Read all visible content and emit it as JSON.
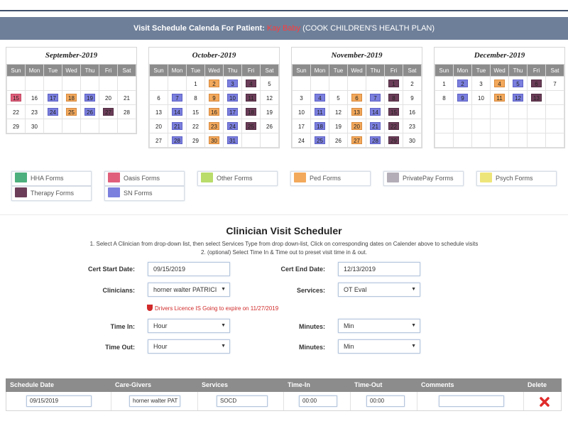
{
  "header": {
    "title_prefix": "Visit Schedule Calenda For Patient:",
    "patient_name": "Kay Baby",
    "plan": "(COOK CHILDREN'S HEALTH PLAN)"
  },
  "calendar": {
    "weekdays": [
      "Sun",
      "Mon",
      "Tue",
      "Wed",
      "Thu",
      "Fri",
      "Sat"
    ],
    "months": [
      {
        "title": "September-2019",
        "weeks": [
          [
            {
              "d": ""
            },
            {
              "d": ""
            },
            {
              "d": ""
            },
            {
              "d": ""
            },
            {
              "d": ""
            },
            {
              "d": ""
            },
            {
              "d": ""
            }
          ],
          [
            {
              "d": "15",
              "c": "oasis"
            },
            {
              "d": "16"
            },
            {
              "d": "17",
              "c": "sn"
            },
            {
              "d": "18",
              "c": "ped"
            },
            {
              "d": "19",
              "c": "sn"
            },
            {
              "d": "20"
            },
            {
              "d": "21"
            }
          ],
          [
            {
              "d": "22"
            },
            {
              "d": "23"
            },
            {
              "d": "24",
              "c": "sn"
            },
            {
              "d": "25",
              "c": "ped"
            },
            {
              "d": "26",
              "c": "sn"
            },
            {
              "d": "27",
              "c": "therapy"
            },
            {
              "d": "28"
            }
          ],
          [
            {
              "d": "29"
            },
            {
              "d": "30"
            },
            {
              "d": ""
            },
            {
              "d": ""
            },
            {
              "d": ""
            },
            {
              "d": ""
            },
            {
              "d": ""
            }
          ]
        ]
      },
      {
        "title": "October-2019",
        "weeks": [
          [
            {
              "d": ""
            },
            {
              "d": ""
            },
            {
              "d": "1"
            },
            {
              "d": "2",
              "c": "ped"
            },
            {
              "d": "3",
              "c": "sn"
            },
            {
              "d": "4",
              "c": "therapy"
            },
            {
              "d": "5"
            }
          ],
          [
            {
              "d": "6"
            },
            {
              "d": "7",
              "c": "sn"
            },
            {
              "d": "8"
            },
            {
              "d": "9",
              "c": "ped"
            },
            {
              "d": "10",
              "c": "sn"
            },
            {
              "d": "11",
              "c": "therapy"
            },
            {
              "d": "12"
            }
          ],
          [
            {
              "d": "13"
            },
            {
              "d": "14",
              "c": "sn"
            },
            {
              "d": "15"
            },
            {
              "d": "16",
              "c": "ped"
            },
            {
              "d": "17",
              "c": "sn"
            },
            {
              "d": "18",
              "c": "therapy"
            },
            {
              "d": "19"
            }
          ],
          [
            {
              "d": "20"
            },
            {
              "d": "21",
              "c": "sn"
            },
            {
              "d": "22"
            },
            {
              "d": "23",
              "c": "ped"
            },
            {
              "d": "24",
              "c": "sn"
            },
            {
              "d": "25",
              "c": "therapy"
            },
            {
              "d": "26"
            }
          ],
          [
            {
              "d": "27"
            },
            {
              "d": "28",
              "c": "sn"
            },
            {
              "d": "29"
            },
            {
              "d": "30",
              "c": "ped"
            },
            {
              "d": "31",
              "c": "sn"
            },
            {
              "d": ""
            },
            {
              "d": ""
            }
          ]
        ]
      },
      {
        "title": "November-2019",
        "weeks": [
          [
            {
              "d": ""
            },
            {
              "d": ""
            },
            {
              "d": ""
            },
            {
              "d": ""
            },
            {
              "d": ""
            },
            {
              "d": "1",
              "c": "therapy"
            },
            {
              "d": "2"
            }
          ],
          [
            {
              "d": "3"
            },
            {
              "d": "4",
              "c": "sn"
            },
            {
              "d": "5"
            },
            {
              "d": "6",
              "c": "ped"
            },
            {
              "d": "7",
              "c": "sn"
            },
            {
              "d": "8",
              "c": "therapy"
            },
            {
              "d": "9"
            }
          ],
          [
            {
              "d": "10"
            },
            {
              "d": "11",
              "c": "sn"
            },
            {
              "d": "12"
            },
            {
              "d": "13",
              "c": "ped"
            },
            {
              "d": "14",
              "c": "sn"
            },
            {
              "d": "15",
              "c": "therapy"
            },
            {
              "d": "16"
            }
          ],
          [
            {
              "d": "17"
            },
            {
              "d": "18",
              "c": "sn"
            },
            {
              "d": "19"
            },
            {
              "d": "20",
              "c": "ped"
            },
            {
              "d": "21",
              "c": "sn"
            },
            {
              "d": "22",
              "c": "therapy"
            },
            {
              "d": "23"
            }
          ],
          [
            {
              "d": "24"
            },
            {
              "d": "25",
              "c": "sn"
            },
            {
              "d": "26"
            },
            {
              "d": "27",
              "c": "ped"
            },
            {
              "d": "28",
              "c": "sn"
            },
            {
              "d": "29",
              "c": "therapy"
            },
            {
              "d": "30"
            }
          ]
        ]
      },
      {
        "title": "December-2019",
        "weeks": [
          [
            {
              "d": "1"
            },
            {
              "d": "2",
              "c": "sn"
            },
            {
              "d": "3"
            },
            {
              "d": "4",
              "c": "ped"
            },
            {
              "d": "5",
              "c": "sn"
            },
            {
              "d": "6",
              "c": "therapy"
            },
            {
              "d": "7"
            }
          ],
          [
            {
              "d": "8"
            },
            {
              "d": "9",
              "c": "sn"
            },
            {
              "d": "10"
            },
            {
              "d": "11",
              "c": "ped"
            },
            {
              "d": "12",
              "c": "sn"
            },
            {
              "d": "13",
              "c": "therapy"
            },
            {
              "d": ""
            }
          ],
          [
            {
              "d": ""
            },
            {
              "d": ""
            },
            {
              "d": ""
            },
            {
              "d": ""
            },
            {
              "d": ""
            },
            {
              "d": ""
            },
            {
              "d": ""
            }
          ],
          [
            {
              "d": ""
            },
            {
              "d": ""
            },
            {
              "d": ""
            },
            {
              "d": ""
            },
            {
              "d": ""
            },
            {
              "d": ""
            },
            {
              "d": ""
            }
          ],
          [
            {
              "d": ""
            },
            {
              "d": ""
            },
            {
              "d": ""
            },
            {
              "d": ""
            },
            {
              "d": ""
            },
            {
              "d": ""
            },
            {
              "d": ""
            }
          ]
        ]
      }
    ]
  },
  "legend": [
    {
      "label": "HHA Forms",
      "color": "#4caf7d"
    },
    {
      "label": "Oasis Forms",
      "color": "#e0607c"
    },
    {
      "label": "Other Forms",
      "color": "#b9dc6b"
    },
    {
      "label": "Ped Forms",
      "color": "#f3a95c"
    },
    {
      "label": "PrivatePay Forms",
      "color": "#b3adb8"
    },
    {
      "label": "Psych Forms",
      "color": "#eee57a"
    },
    {
      "label": "Therapy Forms",
      "color": "#6b3d58"
    },
    {
      "label": "SN Forms",
      "color": "#7b7fde"
    }
  ],
  "scheduler": {
    "title": "Clinician Visit Scheduler",
    "instruction1": "1. Select A Clinician from drop-down list, then select Services Type from drop down-list, Click on corresponding dates on Calender above to schedule visits",
    "instruction2": "2. (optional) Select Time In & Time out to preset visit time in & out.",
    "cert_start_label": "Cert Start Date:",
    "cert_start_value": "09/15/2019",
    "cert_end_label": "Cert End Date:",
    "cert_end_value": "12/13/2019",
    "clinicians_label": "Clinicians:",
    "clinician_value": "horner walter PATRICI",
    "services_label": "Services:",
    "services_value": "OT Eval",
    "warning": "Drivers Licence IS Going to expire on 11/27/2019",
    "time_in_label": "Time In:",
    "time_in_value": "Hour",
    "minutes_label": "Minutes:",
    "minutes_in_value": "Min",
    "time_out_label": "Time Out:",
    "time_out_value": "Hour",
    "minutes_out_value": "Min"
  },
  "grid": {
    "headers": [
      "Schedule Date",
      "Care-Givers",
      "Services",
      "Time-In",
      "Time-Out",
      "Comments",
      "Delete"
    ],
    "row": {
      "date": "09/15/2019",
      "caregiver": "horner walter PAT",
      "service": "SOCD",
      "time_in": "00:00",
      "time_out": "00:00",
      "comments": ""
    }
  },
  "colors": {
    "header_bg": "#6e7f99",
    "sn": "#7b7fde",
    "ped": "#f3a95c",
    "therapy": "#6b3d58",
    "oasis": "#e0607c",
    "delete": "#e02b2b"
  }
}
